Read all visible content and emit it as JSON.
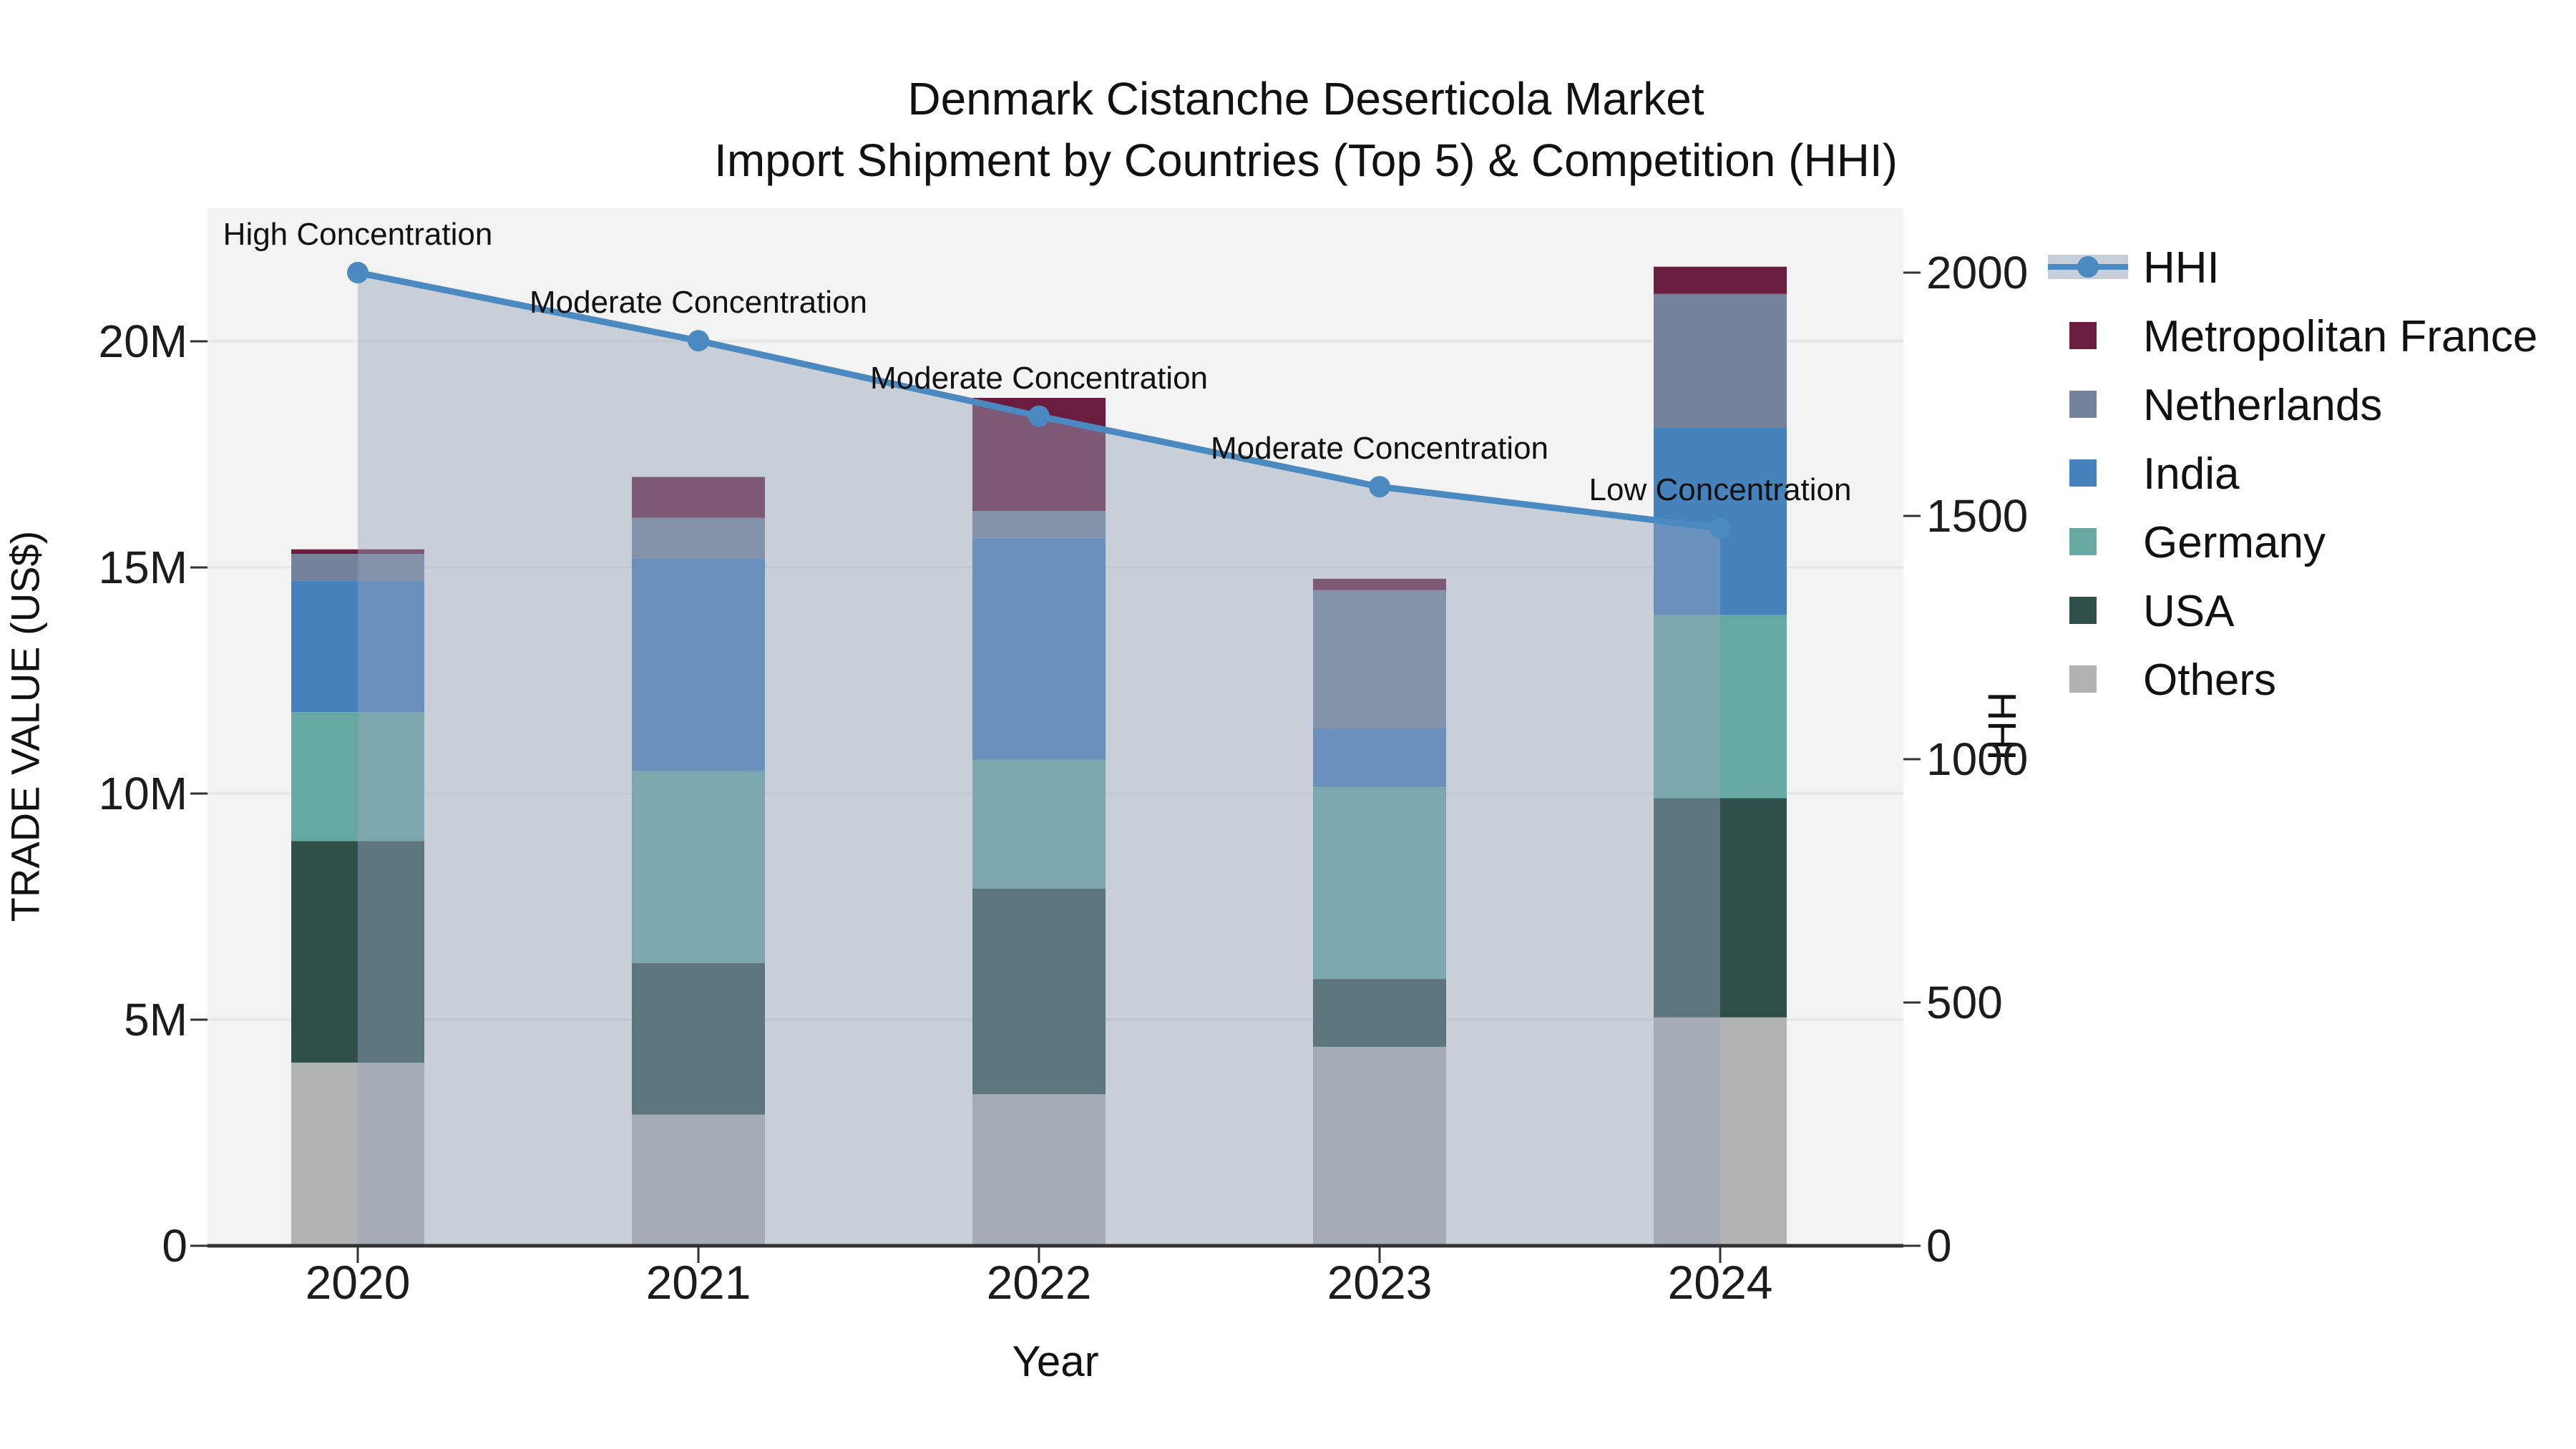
{
  "title": {
    "line1": "Denmark Cistanche Deserticola Market",
    "line2": "Import Shipment by Countries (Top 5) & Competition (HHI)"
  },
  "left_axis": {
    "title": "TRADE VALUE (US$)",
    "ticks": [
      "0",
      "5M",
      "10M",
      "15M",
      "20M"
    ],
    "tick_values": [
      0,
      5,
      10,
      15,
      20
    ]
  },
  "right_axis": {
    "title": "HHI",
    "ticks": [
      "0",
      "500",
      "1000",
      "1500",
      "2000"
    ],
    "tick_values": [
      0,
      500,
      1000,
      1500,
      2000
    ]
  },
  "x_axis": {
    "title": "Year",
    "categories": [
      "2020",
      "2021",
      "2022",
      "2023",
      "2024"
    ]
  },
  "legend": {
    "items": [
      {
        "label": "HHI",
        "type": "line",
        "color": "#4a8ac1",
        "band_color": "#c7cfdb"
      },
      {
        "label": "Metropolitan France",
        "type": "swatch",
        "color": "#6b1d3f"
      },
      {
        "label": "Netherlands",
        "type": "swatch",
        "color": "#74839b"
      },
      {
        "label": "India",
        "type": "swatch",
        "color": "#4682bc"
      },
      {
        "label": "Germany",
        "type": "swatch",
        "color": "#66a9a3"
      },
      {
        "label": "USA",
        "type": "swatch",
        "color": "#2f4f4a"
      },
      {
        "label": "Others",
        "type": "swatch",
        "color": "#b1b3b2"
      }
    ]
  },
  "chart_data": {
    "type": "combo",
    "bar_mode": "stacked",
    "title": "Denmark Cistanche Deserticola Market — Import Shipment by Countries (Top 5) & Competition (HHI)",
    "xlabel": "Year",
    "ylabel_left": "TRADE VALUE (US$)",
    "ylabel_right": "HHI",
    "categories": [
      "2020",
      "2021",
      "2022",
      "2023",
      "2024"
    ],
    "values_unit": "millions USD",
    "bar_series": [
      {
        "name": "Others",
        "color": "#b1b3b2",
        "values": [
          4.05,
          2.9,
          3.35,
          4.4,
          5.05
        ]
      },
      {
        "name": "USA",
        "color": "#2f4f4a",
        "values": [
          4.9,
          3.35,
          4.55,
          1.5,
          4.85
        ]
      },
      {
        "name": "Germany",
        "color": "#66a9a3",
        "values": [
          2.85,
          4.25,
          2.85,
          4.25,
          4.05
        ]
      },
      {
        "name": "India",
        "color": "#4682bc",
        "values": [
          2.9,
          4.7,
          4.9,
          1.3,
          4.15
        ]
      },
      {
        "name": "Netherlands",
        "color": "#74839b",
        "values": [
          0.6,
          0.9,
          0.6,
          3.05,
          2.95
        ]
      },
      {
        "name": "Metropolitan France",
        "color": "#6b1d3f",
        "values": [
          0.1,
          0.9,
          2.5,
          0.25,
          0.6
        ]
      }
    ],
    "bar_totals": [
      15.4,
      17.0,
      18.75,
      14.75,
      21.65
    ],
    "line_series": {
      "name": "HHI",
      "color": "#4a8ac1",
      "fill_color": "rgba(150,164,186,0.45)",
      "values": [
        2000,
        1860,
        1705,
        1560,
        1475
      ]
    },
    "annotations": [
      "High Concentration",
      "Moderate Concentration",
      "Moderate Concentration",
      "Moderate Concentration",
      "Low Concentration"
    ],
    "ylim_left": [
      0,
      22.9
    ],
    "ylim_right": [
      0,
      2130
    ],
    "grid": true,
    "legend_position": "right",
    "plot_background": "#f2f3f2",
    "gridline_color": "#e4e6e6",
    "axis_line_color": "#323232"
  }
}
